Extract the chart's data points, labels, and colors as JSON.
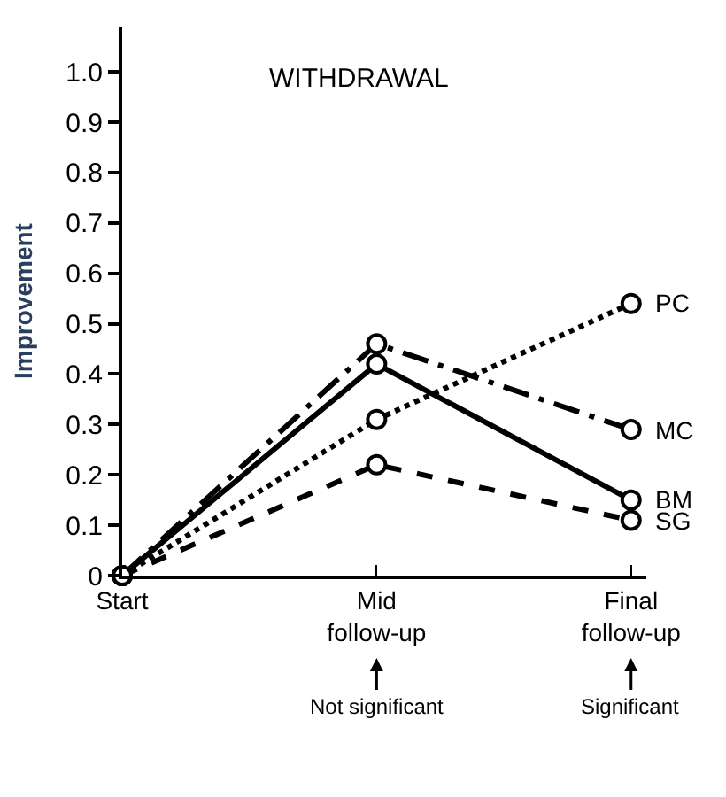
{
  "chart_data": {
    "type": "line",
    "title": "WITHDRAWAL",
    "ylabel": "Improvement",
    "categories": [
      "Start",
      "Mid follow-up",
      "Final follow-up"
    ],
    "series": [
      {
        "name": "PC",
        "color": "#000000",
        "line_style": "dotted",
        "values": [
          0,
          0.31,
          0.54
        ]
      },
      {
        "name": "MC",
        "color": "#000000",
        "line_style": "dashdot",
        "values": [
          0,
          0.46,
          0.29
        ]
      },
      {
        "name": "BM",
        "color": "#000000",
        "line_style": "solid",
        "values": [
          0,
          0.42,
          0.15
        ]
      },
      {
        "name": "SG",
        "color": "#000000",
        "line_style": "dashed",
        "values": [
          0,
          0.22,
          0.11
        ]
      }
    ],
    "annotations": [
      {
        "text": "Not significant",
        "x": "Mid follow-up"
      },
      {
        "text": "Significant",
        "x": "Final follow-up"
      }
    ],
    "ylim": [
      0,
      1.09
    ],
    "yticks": [
      0,
      0.1,
      0.2,
      0.3,
      0.4,
      0.5,
      0.6,
      0.7,
      0.8,
      0.9,
      {
        "value": 1.0,
        "label": "1.0"
      }
    ],
    "marker": "circle",
    "grid": false,
    "legend": false
  }
}
